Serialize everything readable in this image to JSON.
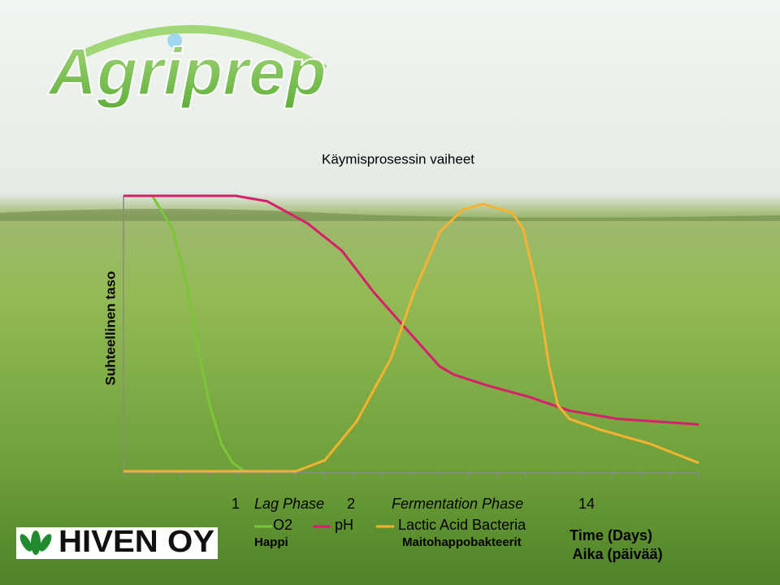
{
  "logo": "Agriprep",
  "company": "HIVEN OY",
  "chart_data": {
    "type": "line",
    "title": "Käymisprosessin vaiheet",
    "y_label": "Suhteellinen taso",
    "x_label": "Time (Days)",
    "x_label_fi": "Aika (päivää)",
    "annotations": [
      "1",
      "Lag Phase",
      "2",
      "Fermentation Phase",
      "14"
    ],
    "xlim": [
      0,
      20
    ],
    "ylim": [
      0,
      100
    ],
    "xticks": [
      0,
      1,
      2,
      3,
      4,
      5,
      6,
      7,
      8,
      9,
      10,
      11,
      12,
      13,
      14,
      15,
      16,
      17,
      18,
      19,
      20
    ],
    "series": [
      {
        "name": "O2",
        "name_fi": "Happi",
        "color": "#7cc53a",
        "x": [
          0,
          1,
          1.7,
          2.2,
          2.6,
          3.0,
          3.4,
          3.8,
          4.2
        ],
        "values": [
          100,
          100,
          88,
          68,
          44,
          24,
          10,
          3,
          0
        ]
      },
      {
        "name": "pH",
        "color": "#d81e6c",
        "x": [
          0,
          3.9,
          5.0,
          6.4,
          7.6,
          8.7,
          9.8,
          11.0,
          11.5,
          12.7,
          14.1,
          15.5,
          17.2,
          20
        ],
        "values": [
          100,
          100,
          98,
          90,
          80,
          65,
          52,
          38,
          35,
          31,
          27,
          22,
          19,
          17
        ]
      },
      {
        "name": "Lactic Acid Bacteria",
        "name_fi": "Maitohappobakteerit",
        "color": "#f7b232",
        "x": [
          0,
          6.0,
          7.0,
          8.1,
          9.3,
          10.1,
          11.0,
          11.8,
          12.5,
          13.5,
          13.9,
          14.4,
          14.8,
          15.1,
          15.5,
          16.6,
          18.3,
          20
        ],
        "values": [
          0,
          0,
          4,
          18,
          41,
          65,
          87,
          95,
          97,
          94,
          88,
          65,
          38,
          24,
          19,
          15,
          10,
          3
        ]
      }
    ]
  }
}
